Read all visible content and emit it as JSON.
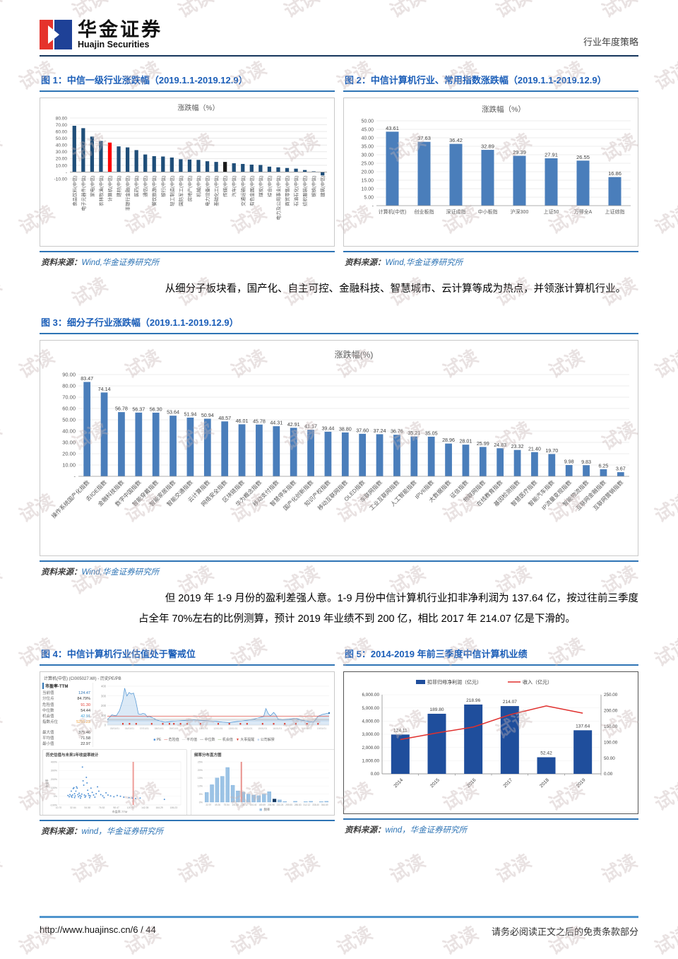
{
  "header": {
    "brand_cn": "华金证券",
    "brand_en": "Huajin Securities",
    "doc_type": "行业年度策略"
  },
  "watermark": {
    "text": "试读"
  },
  "source_label": "资料来源：",
  "figures": {
    "f1": {
      "title": "图 1：中信一级行业涨跌幅（2019.1.1-2019.12.9）",
      "source": "Wind,华金证券研究所"
    },
    "f2": {
      "title": "图 2：中信计算机行业、常用指数涨跌幅（2019.1.1-2019.12.9）",
      "source": "Wind,华金证券研究所"
    },
    "f3": {
      "title": "图 3：细分子行业涨跌幅（2019.1.1-2019.12.9）",
      "source": "Wind,华金证券研究所"
    },
    "f4": {
      "title": "图 4：中信计算机行业估值处于警戒位",
      "source": "wind，华金证券研究所"
    },
    "f5": {
      "title": "图 5：2014-2019 年前三季度中信计算机业绩",
      "source": "wind，华金证券研究所"
    }
  },
  "paragraphs": {
    "p1": "从细分子板块看，国产化、自主可控、金融科技、智慧城市、云计算等成为热点，并领涨计算机行业。",
    "p2": "但 2019 年 1-9 月份的盈利差强人意。1-9 月份中信计算机行业扣非净利润为 137.64 亿，按过往前三季度占全年 70%左右的比例测算，预计 2019 年业绩不到 200 亿，相比 2017 年 214.07 亿是下滑的。"
  },
  "footer": {
    "url": "http://www.huajinsc.cn/6 / 44",
    "disclaimer": "请务必阅读正文之后的免责条款部分"
  },
  "chart_data": [
    {
      "id": "citic-industry-change",
      "type": "bar",
      "title": "涨跌幅（%）",
      "ylim": [
        -10,
        80
      ],
      "ytick_step": 10,
      "grid": true,
      "bar_color": "#1f4e79",
      "highlight_colors": {
        "4": "#ff0000",
        "17": "#1a1a1a"
      },
      "categories": [
        "食品饮料(中信)",
        "电子元器件(中信)",
        "家电(中信)",
        "农林牧渔(中信)",
        "计算机(中信)",
        "建材(中信)",
        "非银行金融(中信)",
        "医药(中信)",
        "通信(中信)",
        "餐饮旅游(中信)",
        "银行(中信)",
        "轻工制造(中信)",
        "国防军工(中信)",
        "房地产(中信)",
        "机械(中信)",
        "电力设备(中信)",
        "基础化工(中信)",
        "传媒(中信)",
        "汽车(中信)",
        "交通运输(中信)",
        "有色金属(中信)",
        "煤炭(中信)",
        "综合(中信)",
        "电力及公用事业(中信)",
        "商贸零售(中信)",
        "石油石化(中信)",
        "纺织服装(中信)",
        "钢铁(中信)",
        "建筑(中信)"
      ],
      "values": [
        68.5,
        65.0,
        52.5,
        46.0,
        43.61,
        38.0,
        36.5,
        32.5,
        26.0,
        23.5,
        23.0,
        21.5,
        19.0,
        18.5,
        18.0,
        16.0,
        15.0,
        15.0,
        13.0,
        12.0,
        11.0,
        10.5,
        8.0,
        7.0,
        6.0,
        5.0,
        3.0,
        1.0,
        -5.0
      ]
    },
    {
      "id": "computer-vs-indices-change",
      "type": "bar",
      "title": "涨跌幅（%）",
      "ylim": [
        0,
        50
      ],
      "ytick_step": 5,
      "grid": true,
      "bar_color": "#4a7ebb",
      "value_labels": true,
      "categories": [
        "计算机(中信)",
        "创业板指",
        "深证成指",
        "中小板指",
        "沪深300",
        "上证50",
        "万得全A",
        "上证综指"
      ],
      "values": [
        43.61,
        37.63,
        36.42,
        32.89,
        29.39,
        27.91,
        26.55,
        16.86
      ]
    },
    {
      "id": "subsector-change",
      "type": "bar",
      "title": "涨跌幅(%)",
      "ylim": [
        0,
        90
      ],
      "ytick_step": 10,
      "grid": true,
      "bar_color": "#4a7ebb",
      "value_labels": true,
      "categories": [
        "操作系统国产化指数",
        "去IOE指数",
        "金融科技指数",
        "数字中国指数",
        "智能穿戴指数",
        "智能家居指数",
        "智能交通指数",
        "云计算指数",
        "网络安全指数",
        "区块链指数",
        "华为概念指数",
        "移动支付指数",
        "智慧停车指数",
        "国产化创新指数",
        "知识产权指数",
        "移动互联网指数",
        "OLED指数",
        "车联网指数",
        "工业互联网指数",
        "人工智能指数",
        "IPV6指数",
        "大数据指数",
        "征信指数",
        "物联网指数",
        "在线教育指数",
        "基因检测指数",
        "智慧医疗指数",
        "智能汽车指数",
        "IP流量变现指数",
        "智能物流指数",
        "互联网金融指数",
        "互联网营销指数"
      ],
      "values": [
        83.47,
        74.14,
        56.78,
        56.37,
        56.3,
        53.64,
        51.94,
        50.94,
        48.57,
        46.01,
        45.78,
        44.31,
        42.91,
        41.17,
        39.44,
        38.8,
        37.6,
        37.24,
        36.76,
        35.21,
        35.05,
        28.96,
        28.01,
        25.99,
        24.83,
        23.32,
        21.4,
        19.7,
        9.98,
        9.83,
        6.25,
        3.67
      ]
    },
    {
      "id": "pe-valuation-panel",
      "type": "line",
      "header": "计算机(中信) (CI005027.WI) - 历史PE/PB",
      "stats": {
        "head": "市盈率-TTM",
        "rows": [
          {
            "label": "当前值",
            "value": "124.47",
            "color": "#2e74b5"
          },
          {
            "label": "分位点",
            "value": "84.79%",
            "color": "#333333"
          },
          {
            "label": "危险值",
            "value": "91.30",
            "color": "#e03c31"
          },
          {
            "label": "中位数",
            "value": "54.44",
            "color": "#333333"
          },
          {
            "label": "机会值",
            "value": "42.91",
            "color": "#2e9bd6"
          },
          {
            "label": "指数点位",
            "value": "5255.23",
            "color": "#f0a13c"
          }
        ],
        "rows2": [
          {
            "label": "最大值",
            "value": "375.46"
          },
          {
            "label": "平均值",
            "value": "71.58"
          },
          {
            "label": "最小值",
            "value": "22.97"
          }
        ]
      },
      "legend": [
        "PE",
        "危险值",
        "平均值",
        "中位数",
        "机会值",
        "大事提醒",
        "公司解禁"
      ],
      "pe_series": {
        "ylim": [
          0,
          400
        ],
        "danger": 91.3,
        "average": 71.58,
        "median": 54.44,
        "chance": 42.91,
        "x_dates": [
          "05/01/01",
          "06/01/01",
          "07/01/01",
          "08/01/01",
          "09/01/01",
          "10/01/01",
          "11/01/01",
          "12/01/01",
          "13/01/01",
          "14/01/01",
          "15/01/01",
          "16/01/01",
          "17/01/01",
          "18/01/01",
          "19/01/01"
        ],
        "points": [
          [
            0,
            55
          ],
          [
            0.02,
            105
          ],
          [
            0.04,
            95
          ],
          [
            0.055,
            150
          ],
          [
            0.07,
            260
          ],
          [
            0.078,
            380
          ],
          [
            0.088,
            300
          ],
          [
            0.098,
            335
          ],
          [
            0.108,
            320
          ],
          [
            0.118,
            330
          ],
          [
            0.128,
            250
          ],
          [
            0.14,
            115
          ],
          [
            0.15,
            110
          ],
          [
            0.16,
            120
          ],
          [
            0.17,
            115
          ],
          [
            0.18,
            85
          ],
          [
            0.19,
            90
          ],
          [
            0.2,
            80
          ],
          [
            0.22,
            55
          ],
          [
            0.24,
            40
          ],
          [
            0.26,
            30
          ],
          [
            0.28,
            35
          ],
          [
            0.3,
            40
          ],
          [
            0.33,
            45
          ],
          [
            0.36,
            50
          ],
          [
            0.39,
            55
          ],
          [
            0.42,
            50
          ],
          [
            0.45,
            45
          ],
          [
            0.48,
            40
          ],
          [
            0.5,
            35
          ],
          [
            0.52,
            30
          ],
          [
            0.55,
            25
          ],
          [
            0.58,
            35
          ],
          [
            0.6,
            40
          ],
          [
            0.63,
            50
          ],
          [
            0.66,
            60
          ],
          [
            0.69,
            80
          ],
          [
            0.705,
            90
          ],
          [
            0.715,
            170
          ],
          [
            0.725,
            120
          ],
          [
            0.735,
            95
          ],
          [
            0.75,
            130
          ],
          [
            0.76,
            105
          ],
          [
            0.77,
            60
          ],
          [
            0.79,
            55
          ],
          [
            0.82,
            60
          ],
          [
            0.85,
            70
          ],
          [
            0.87,
            55
          ],
          [
            0.89,
            45
          ],
          [
            0.91,
            35
          ],
          [
            0.93,
            30
          ],
          [
            0.95,
            90
          ],
          [
            0.97,
            110
          ],
          [
            0.99,
            120
          ],
          [
            1,
            124
          ]
        ]
      },
      "scatter": {
        "title": "历史估值与未来1年收益率统计",
        "xlabel": "市盈率-TTM",
        "ylabel": "收益率",
        "xticks": [
          10.7,
          32.64,
          54.58,
          76.52,
          98.47,
          120.41,
          142.35,
          164.29,
          186.23
        ],
        "yticks": [
          "400%",
          "300%",
          "200%",
          "100%",
          "0%",
          "-100%"
        ],
        "vline": 124.47,
        "points": [
          [
            25,
            10
          ],
          [
            27,
            -5
          ],
          [
            28,
            20
          ],
          [
            30,
            5
          ],
          [
            30,
            60
          ],
          [
            31,
            -10
          ],
          [
            32,
            15
          ],
          [
            33,
            90
          ],
          [
            34,
            100
          ],
          [
            35,
            30
          ],
          [
            35,
            -15
          ],
          [
            36,
            5
          ],
          [
            37,
            60
          ],
          [
            38,
            110
          ],
          [
            39,
            95
          ],
          [
            40,
            20
          ],
          [
            41,
            -5
          ],
          [
            42,
            35
          ],
          [
            43,
            10
          ],
          [
            44,
            -20
          ],
          [
            45,
            0
          ],
          [
            46,
            25
          ],
          [
            47,
            340
          ],
          [
            48,
            180
          ],
          [
            49,
            130
          ],
          [
            50,
            15
          ],
          [
            51,
            -10
          ],
          [
            52,
            5
          ],
          [
            53,
            220
          ],
          [
            54,
            155
          ],
          [
            55,
            70
          ],
          [
            56,
            30
          ],
          [
            57,
            10
          ],
          [
            58,
            -15
          ],
          [
            59,
            5
          ],
          [
            60,
            95
          ],
          [
            62,
            45
          ],
          [
            64,
            15
          ],
          [
            66,
            -10
          ],
          [
            68,
            30
          ],
          [
            70,
            110
          ],
          [
            72,
            60
          ],
          [
            75,
            20
          ],
          [
            78,
            5
          ],
          [
            80,
            -15
          ],
          [
            83,
            40
          ],
          [
            86,
            15
          ],
          [
            90,
            5
          ],
          [
            95,
            -5
          ],
          [
            100,
            10
          ],
          [
            105,
            0
          ],
          [
            110,
            -10
          ],
          [
            118,
            -15
          ],
          [
            123,
            -20
          ],
          [
            128,
            -25
          ],
          [
            135,
            -20
          ],
          [
            172,
            -35
          ]
        ]
      },
      "histogram": {
        "title": "频率分布直方图",
        "legend": "频率",
        "yticks": [
          "0%",
          "5%",
          "10%",
          "15%",
          "20%",
          "25%"
        ],
        "xticks": [
          22.97,
          49.26,
          75.54,
          101.83,
          128.12,
          154.4,
          180.69,
          206.98,
          233.26,
          259.55,
          285.83,
          312.12,
          338.4,
          364.69
        ],
        "heights": [
          6,
          10.8,
          15,
          16,
          21.5,
          10.5,
          7,
          6.2,
          5,
          4.4,
          4,
          5,
          6.5,
          2,
          1.4,
          0.4,
          0,
          0.5,
          0,
          0.3,
          0.5,
          0,
          0.3,
          0.5
        ],
        "current_bin": 13,
        "vline_frac": 0.298
      }
    },
    {
      "id": "computer-results-2014-2019",
      "type": "bar+line",
      "categories": [
        "2014",
        "2015",
        "2016",
        "2017",
        "2018",
        "2019"
      ],
      "series": [
        {
          "name": "扣非归母净利润（亿元）",
          "axis": "right",
          "values": [
            124.11,
            189.8,
            218.96,
            214.07,
            52.42,
            137.64
          ],
          "color": "#1f4e9c"
        },
        {
          "name": "收入（亿元）",
          "axis": "left",
          "values": [
            2600,
            3100,
            3550,
            4480,
            5150,
            4600
          ],
          "color": "#e0302e"
        }
      ],
      "left_ylim": [
        0,
        6000
      ],
      "left_step": 1000,
      "right_ylim": [
        0,
        250
      ],
      "right_step": 50,
      "legend_position": "top"
    }
  ]
}
